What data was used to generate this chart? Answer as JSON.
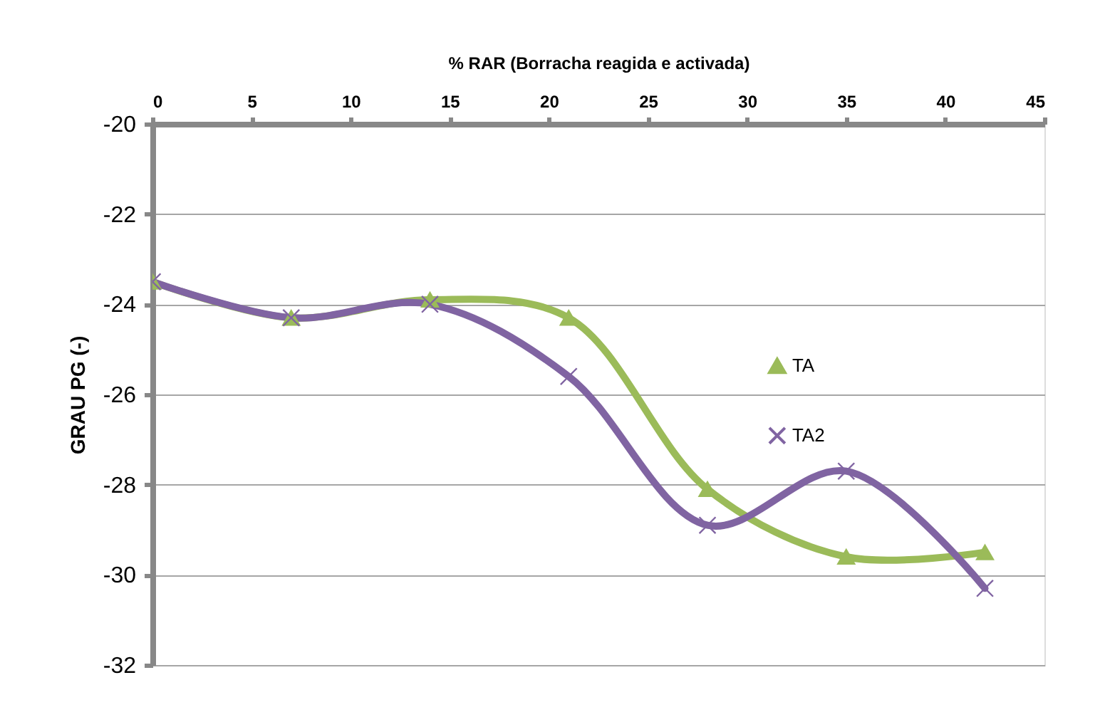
{
  "chart_data": {
    "type": "line",
    "xlabel": "% RAR (Borracha reagida e activada)",
    "ylabel": "GRAU PG (-)",
    "x": [
      0,
      7,
      14,
      21,
      28,
      35,
      42
    ],
    "series": [
      {
        "name": "TA",
        "color": "#9bbb59",
        "marker": "triangle",
        "values": [
          -23.5,
          -24.3,
          -23.9,
          -24.3,
          -28.1,
          -29.6,
          -29.5
        ]
      },
      {
        "name": "TA2",
        "color": "#8064a2",
        "marker": "cross",
        "values": [
          -23.5,
          -24.3,
          -24.0,
          -25.6,
          -28.9,
          -27.7,
          -30.3
        ]
      }
    ],
    "xlim": [
      0,
      45
    ],
    "xticks": [
      0,
      5,
      10,
      15,
      20,
      25,
      30,
      35,
      40,
      45
    ],
    "ylim": [
      -32,
      -20
    ],
    "yticks": [
      -20,
      -22,
      -24,
      -26,
      -28,
      -30,
      -32
    ],
    "grid": "y",
    "legend": "right",
    "line_style": "solid"
  }
}
